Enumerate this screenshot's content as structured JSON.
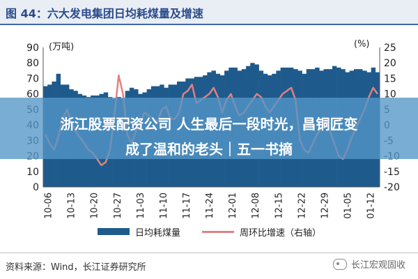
{
  "header": {
    "title": "图 44：六大发电集团日均耗煤量及增速"
  },
  "overlay": {
    "line1": "浙江股票配资公司 人生最后一段时光，昌铜匠变",
    "line2": "成了温和的老头｜五一书摘"
  },
  "footer": {
    "source": "资料来源：Wind，长江证券研究所",
    "brand": "长江宏观固收"
  },
  "colors": {
    "bars": "#1f5a8c",
    "line": "#e08181",
    "header_bg": "#e9eef5",
    "title": "#2a4b8d"
  },
  "chart_data": {
    "type": "bar",
    "left_unit": "(万吨)",
    "right_unit": "(%)",
    "left_ticks": [
      "90",
      "80",
      "70",
      "60",
      "50",
      "40",
      "30",
      "20",
      "10",
      "0"
    ],
    "right_ticks": [
      "25",
      "20",
      "15",
      "10",
      "5",
      "0",
      "-5",
      "-10",
      "-15",
      "-20"
    ],
    "ylim_left": [
      0,
      90
    ],
    "ylim_right": [
      -20,
      25
    ],
    "x_tick_labels": [
      "10-06",
      "10-13",
      "10-20",
      "10-27",
      "11-03",
      "11-10",
      "11-17",
      "11-24",
      "12-01",
      "12-08",
      "12-15",
      "12-22",
      "12-29",
      "01-05",
      "01-12"
    ],
    "series": [
      {
        "name": "日均耗煤量",
        "type": "bar",
        "axis": "left",
        "values": [
          65,
          66,
          68,
          73,
          66,
          66,
          63,
          62,
          60,
          59,
          58,
          59,
          59,
          60,
          61,
          58,
          57,
          58,
          57,
          62,
          64,
          63,
          60,
          61,
          63,
          65,
          65,
          66,
          64,
          66,
          66,
          68,
          68,
          70,
          70,
          71,
          71,
          72,
          74,
          75,
          73,
          72,
          75,
          77,
          77,
          75,
          76,
          78,
          80,
          79,
          75,
          73,
          72,
          73,
          75,
          77,
          77,
          77,
          76,
          75,
          73,
          76,
          76,
          77,
          75,
          76,
          76,
          78,
          77,
          76,
          74,
          75,
          76,
          76,
          75,
          74,
          77,
          74
        ]
      },
      {
        "name": "周环比增速（右轴）",
        "type": "line",
        "axis": "right",
        "values": [
          -3,
          -6,
          -8,
          -4,
          2,
          5,
          1,
          -2,
          -4,
          -6,
          -8,
          -9,
          -11,
          -13,
          -12,
          -8,
          3,
          16,
          10,
          -3,
          -6,
          -2,
          1,
          4,
          3,
          2,
          1,
          5,
          6,
          2,
          2,
          4,
          10,
          11,
          13,
          7,
          8,
          9,
          10,
          12,
          9,
          4,
          8,
          10,
          6,
          3,
          4,
          6,
          8,
          10,
          9,
          6,
          4,
          6,
          8,
          10,
          11,
          12,
          8,
          -5,
          -8,
          -9,
          -6,
          -3,
          -1,
          2,
          -2,
          -6,
          -10,
          -11,
          -8,
          -4,
          -1,
          2,
          5,
          9,
          12,
          10
        ]
      }
    ]
  }
}
